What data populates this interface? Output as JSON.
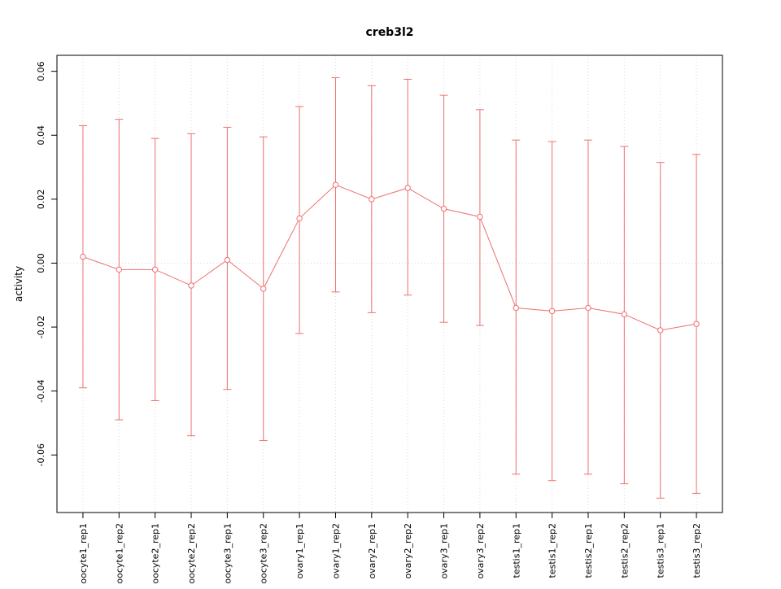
{
  "chart_data": {
    "type": "line",
    "title": "creb3l2",
    "xlabel": "",
    "ylabel": "activity",
    "legend": "none",
    "grid": {
      "vertical": "dotted",
      "zero_line": "dotted",
      "color": "#d8d8d8"
    },
    "point_style": "open-circle",
    "error_bars": true,
    "series_color": "#ef6f6f",
    "ylim": [
      -0.078,
      0.065
    ],
    "yticks": [
      {
        "value": -0.06,
        "label": "-0.06"
      },
      {
        "value": -0.04,
        "label": "-0.04"
      },
      {
        "value": -0.02,
        "label": "-0.02"
      },
      {
        "value": 0.0,
        "label": "0.00"
      },
      {
        "value": 0.02,
        "label": "0.02"
      },
      {
        "value": 0.04,
        "label": "0.04"
      },
      {
        "value": 0.06,
        "label": "0.06"
      }
    ],
    "categories": [
      "oocyte1_rep1",
      "oocyte1_rep2",
      "oocyte2_rep1",
      "oocyte2_rep2",
      "oocyte3_rep1",
      "oocyte3_rep2",
      "ovary1_rep1",
      "ovary1_rep2",
      "ovary2_rep1",
      "ovary2_rep2",
      "ovary3_rep1",
      "ovary3_rep2",
      "testis1_rep1",
      "testis1_rep2",
      "testis2_rep1",
      "testis2_rep2",
      "testis3_rep1",
      "testis3_rep2"
    ],
    "values": [
      0.002,
      -0.002,
      -0.002,
      -0.007,
      0.001,
      -0.008,
      0.014,
      0.0245,
      0.02,
      0.0235,
      0.017,
      0.0145,
      -0.014,
      -0.015,
      -0.014,
      -0.016,
      -0.021,
      -0.019
    ],
    "upper": [
      0.043,
      0.045,
      0.039,
      0.0405,
      0.0425,
      0.0395,
      0.049,
      0.058,
      0.0555,
      0.0575,
      0.0525,
      0.048,
      0.0385,
      0.038,
      0.0385,
      0.0365,
      0.0315,
      0.034
    ],
    "lower": [
      -0.039,
      -0.049,
      -0.043,
      -0.054,
      -0.0395,
      -0.0555,
      -0.022,
      -0.009,
      -0.0155,
      -0.01,
      -0.0185,
      -0.0195,
      -0.066,
      -0.068,
      -0.066,
      -0.069,
      -0.0735,
      -0.072
    ]
  }
}
